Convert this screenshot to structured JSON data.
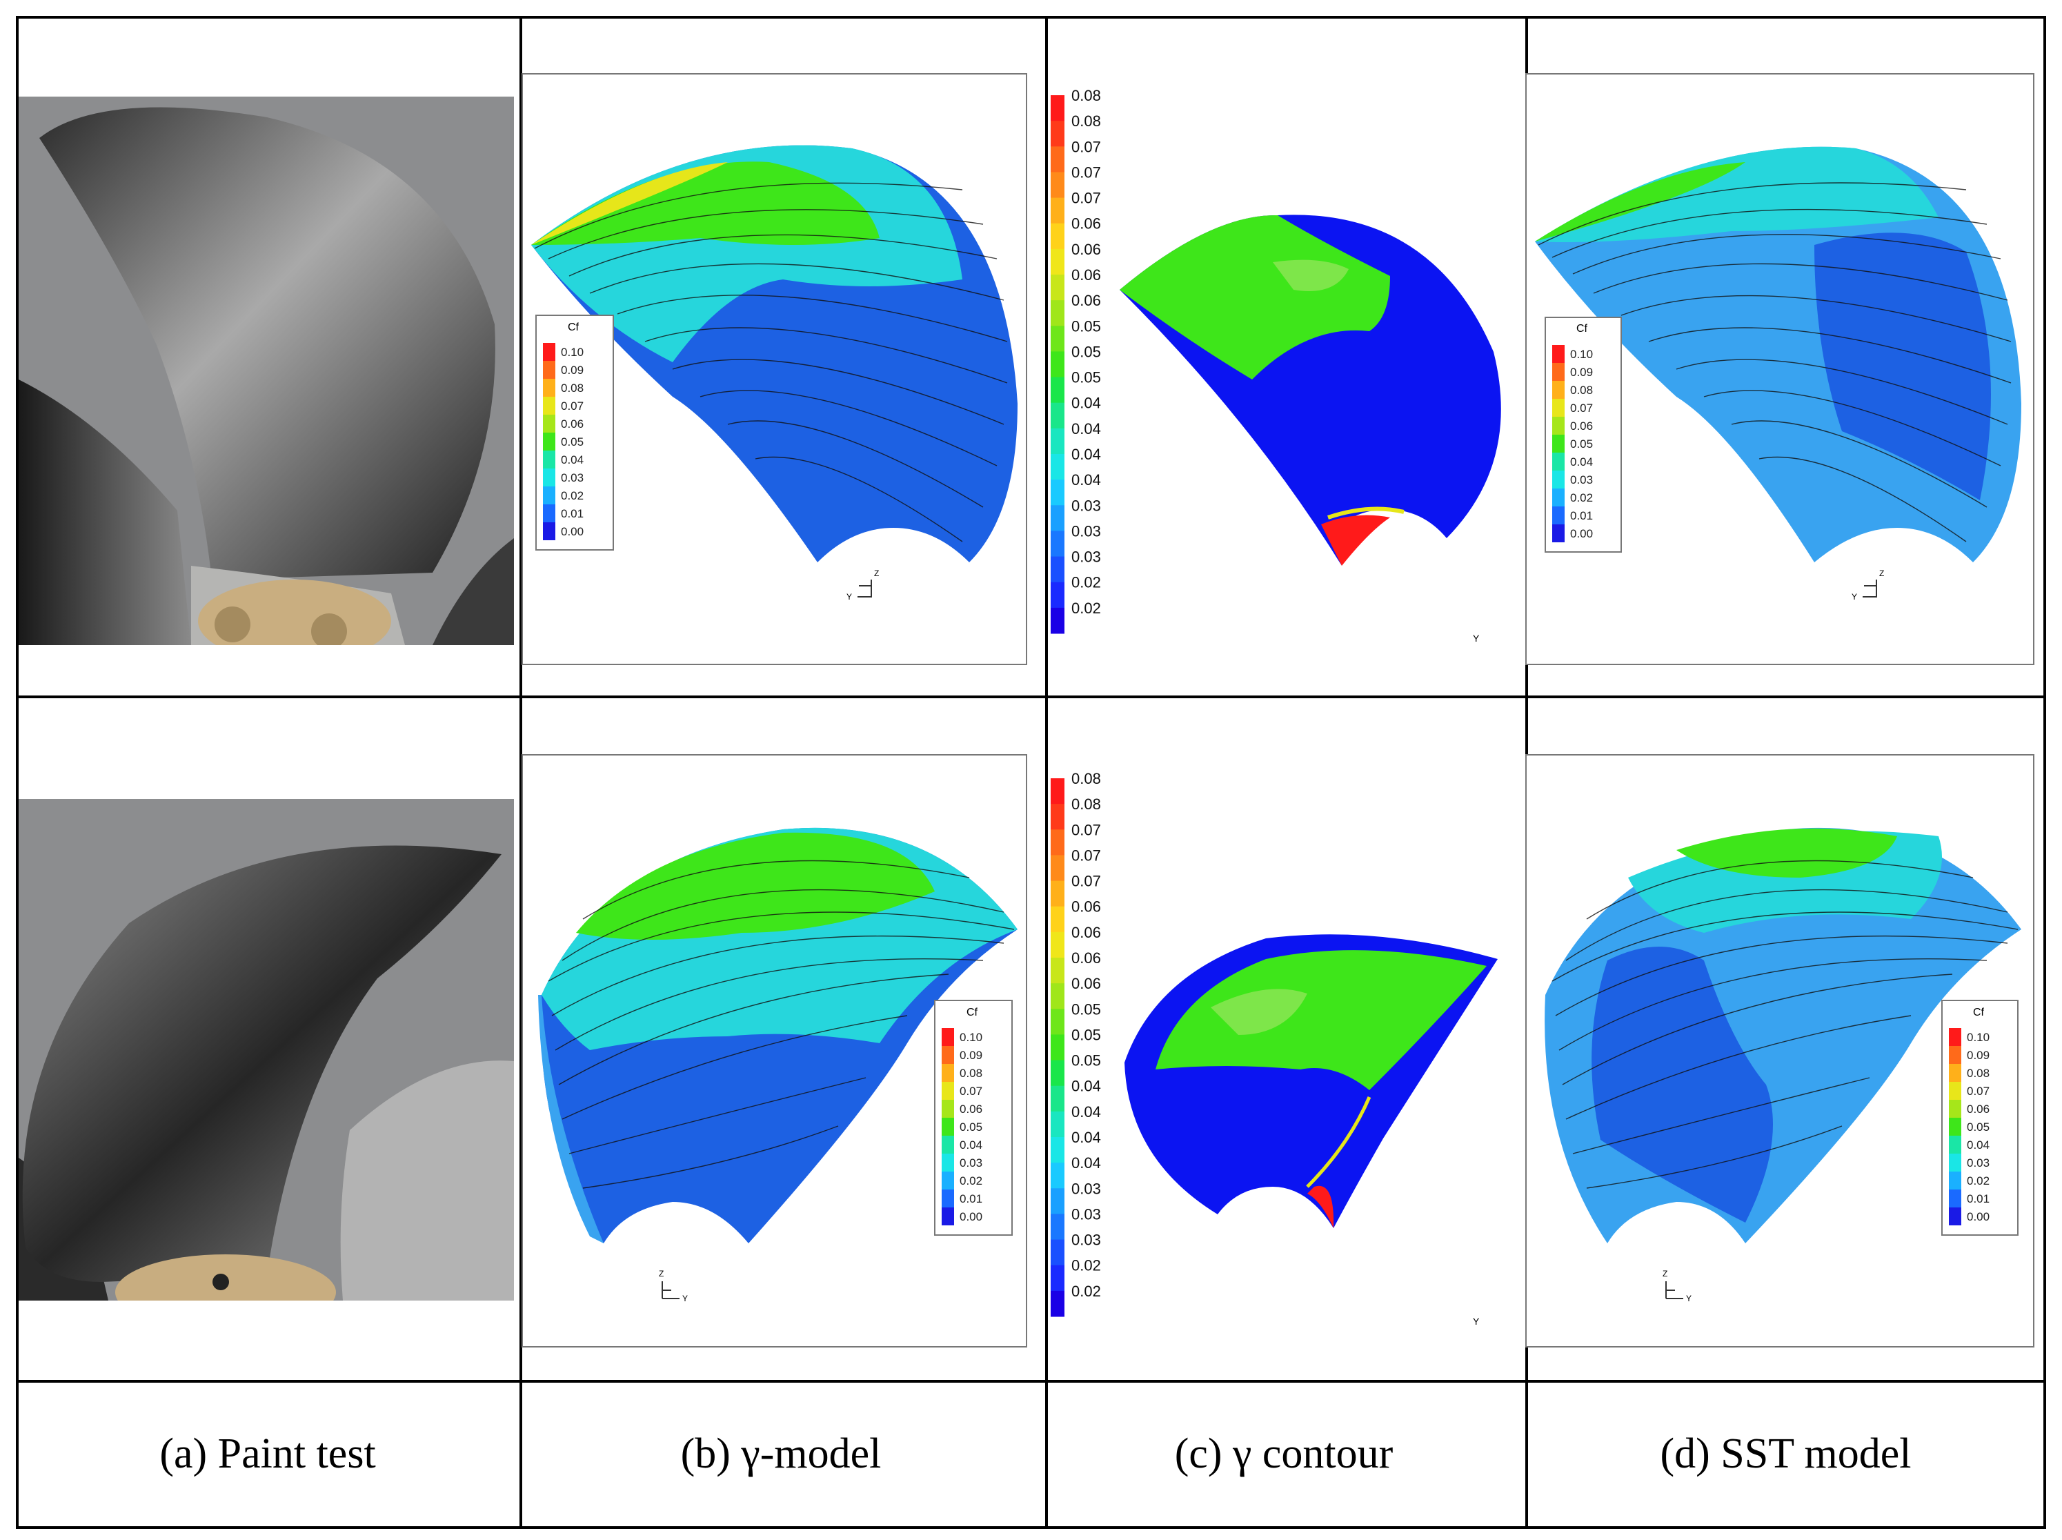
{
  "captions": {
    "a": "(a) Paint test",
    "b": "(b) γ-model",
    "c": "(c) γ contour",
    "d": "(d) SST model"
  },
  "cf_legend": {
    "title": "Cf",
    "labels": [
      "0.10",
      "0.09",
      "0.08",
      "0.07",
      "0.06",
      "0.05",
      "0.04",
      "0.03",
      "0.02",
      "0.01",
      "0.00"
    ],
    "colors": [
      "#ff1a1a",
      "#ff6a1a",
      "#ffb01a",
      "#e8e61a",
      "#a6e61a",
      "#3ee61a",
      "#1ae6a6",
      "#1ae6e6",
      "#1ab0ff",
      "#1a6aff",
      "#1a1ae6"
    ]
  },
  "gamma_legend": {
    "labels": [
      "0.08",
      "0.08",
      "0.07",
      "0.07",
      "0.07",
      "0.06",
      "0.06",
      "0.06",
      "0.06",
      "0.05",
      "0.05",
      "0.05",
      "0.04",
      "0.04",
      "0.04",
      "0.04",
      "0.03",
      "0.03",
      "0.03",
      "0.02",
      "0.02"
    ],
    "colors": [
      "#ff1a1a",
      "#ff3a1a",
      "#ff6a1a",
      "#ff8a1a",
      "#ffb01a",
      "#ffd21a",
      "#f0e61a",
      "#c8e61a",
      "#a0e61a",
      "#6ee61a",
      "#3ee61a",
      "#1ae64a",
      "#1ae68a",
      "#1ae6c0",
      "#1ae6e6",
      "#1acaff",
      "#1aa0ff",
      "#1a78ff",
      "#1a50ff",
      "#1a2aff",
      "#1a00e6"
    ]
  },
  "axis_labels": {
    "y": "Y",
    "z": "Z"
  },
  "colors": {
    "blue": "#1d61e3",
    "deep_blue": "#0b14f2",
    "light_blue": "#39a3f0",
    "cyan": "#26d6dc",
    "green": "#3ee61a",
    "light_green": "#7ee64a",
    "yellow": "#e6e61a",
    "red": "#ff1a1a"
  }
}
